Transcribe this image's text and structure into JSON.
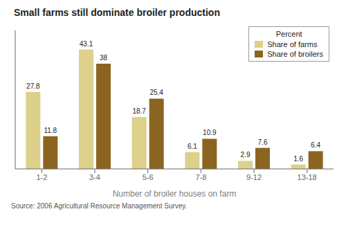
{
  "chart_data": {
    "type": "bar",
    "title": "Small farms still dominate broiler production",
    "categories": [
      "1-2",
      "3-4",
      "5-6",
      "7-8",
      "9-12",
      "13-18"
    ],
    "series": [
      {
        "name": "Share of farms",
        "color": "#ddd08a",
        "values": [
          27.8,
          43.1,
          18.7,
          6.1,
          2.9,
          1.6
        ]
      },
      {
        "name": "Share of broilers",
        "color": "#8b6520",
        "values": [
          11.8,
          38,
          25.4,
          10.9,
          7.6,
          6.4
        ]
      }
    ],
    "xlabel": "Number of broiler houses on farm",
    "legend_title": "Percent",
    "annotations": [
      "Source: 2006 Agricultural Resource Management Survey."
    ],
    "ylim": [
      0,
      50
    ],
    "grid": false,
    "legend": "upper right",
    "data_labels": true,
    "tick_labels": "x"
  }
}
